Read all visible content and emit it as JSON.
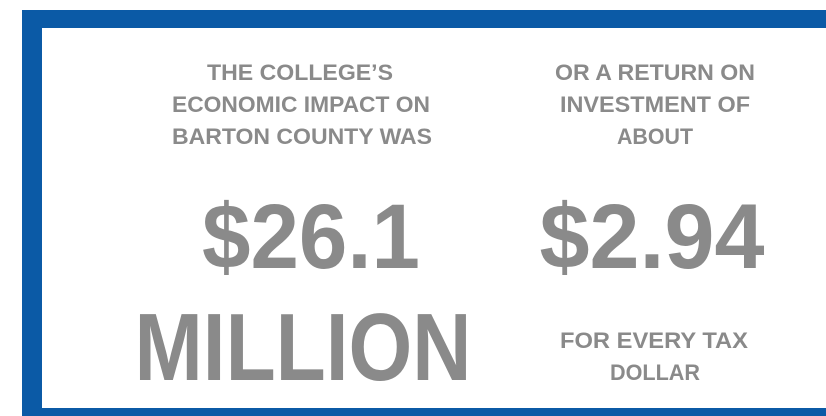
{
  "left": {
    "heading": [
      "THE COLLEGE’S",
      "ECONOMIC IMPACT ON",
      "BARTON COUNTY WAS"
    ],
    "amount": "$26.1",
    "unit": "MILLION"
  },
  "right": {
    "heading": [
      "OR A RETURN ON",
      "INVESTMENT OF",
      "ABOUT"
    ],
    "amount": "$2.94",
    "caption": [
      "FOR EVERY TAX",
      "DOLLAR"
    ]
  }
}
